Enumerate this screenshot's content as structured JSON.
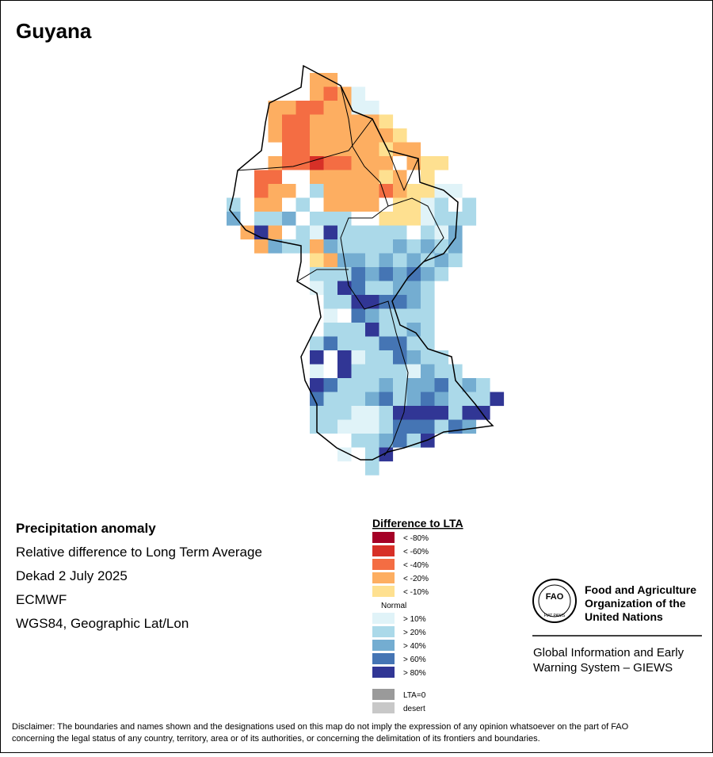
{
  "header": {
    "title": "Guyana"
  },
  "info": {
    "heading": "Precipitation anomaly",
    "lines": [
      "Relative difference to Long Term Average",
      "Dekad 2 July 2025",
      "ECMWF",
      "WGS84, Geographic Lat/Lon"
    ]
  },
  "legend": {
    "title": "Difference to LTA",
    "items": [
      {
        "label": "< -80%",
        "color": "#a50026"
      },
      {
        "label": "< -60%",
        "color": "#d73027"
      },
      {
        "label": "< -40%",
        "color": "#f46d43"
      },
      {
        "label": "< -20%",
        "color": "#fdae61"
      },
      {
        "label": "< -10%",
        "color": "#fee090"
      },
      {
        "label": "Normal",
        "color": "#ffffff"
      },
      {
        "label": "> 10%",
        "color": "#e0f3f8"
      },
      {
        "label": "> 20%",
        "color": "#abd9e9"
      },
      {
        "label": "> 40%",
        "color": "#74add1"
      },
      {
        "label": "> 60%",
        "color": "#4575b4"
      },
      {
        "label": "> 80%",
        "color": "#313695"
      },
      {
        "label": "LTA=0",
        "color": "#9a9a9a"
      },
      {
        "label": "desert",
        "color": "#c8c8c8"
      }
    ]
  },
  "logo": {
    "acronym": "FAO",
    "motto": "FIAT PANIS",
    "org_lines": [
      "Food and Agriculture",
      "Organization of the",
      "United Nations"
    ],
    "system_lines": [
      "Global Information and Early",
      "Warning System – GIEWS"
    ]
  },
  "disclaimer": [
    "Disclaimer: The boundaries and names shown and the designations used on this map do not imply the expression of any opinion whatsoever on the part of FAO",
    "concerning the legal status of any country, territory, area or of its authorities, or concerning the delimitation of its frontiers and boundaries."
  ]
}
